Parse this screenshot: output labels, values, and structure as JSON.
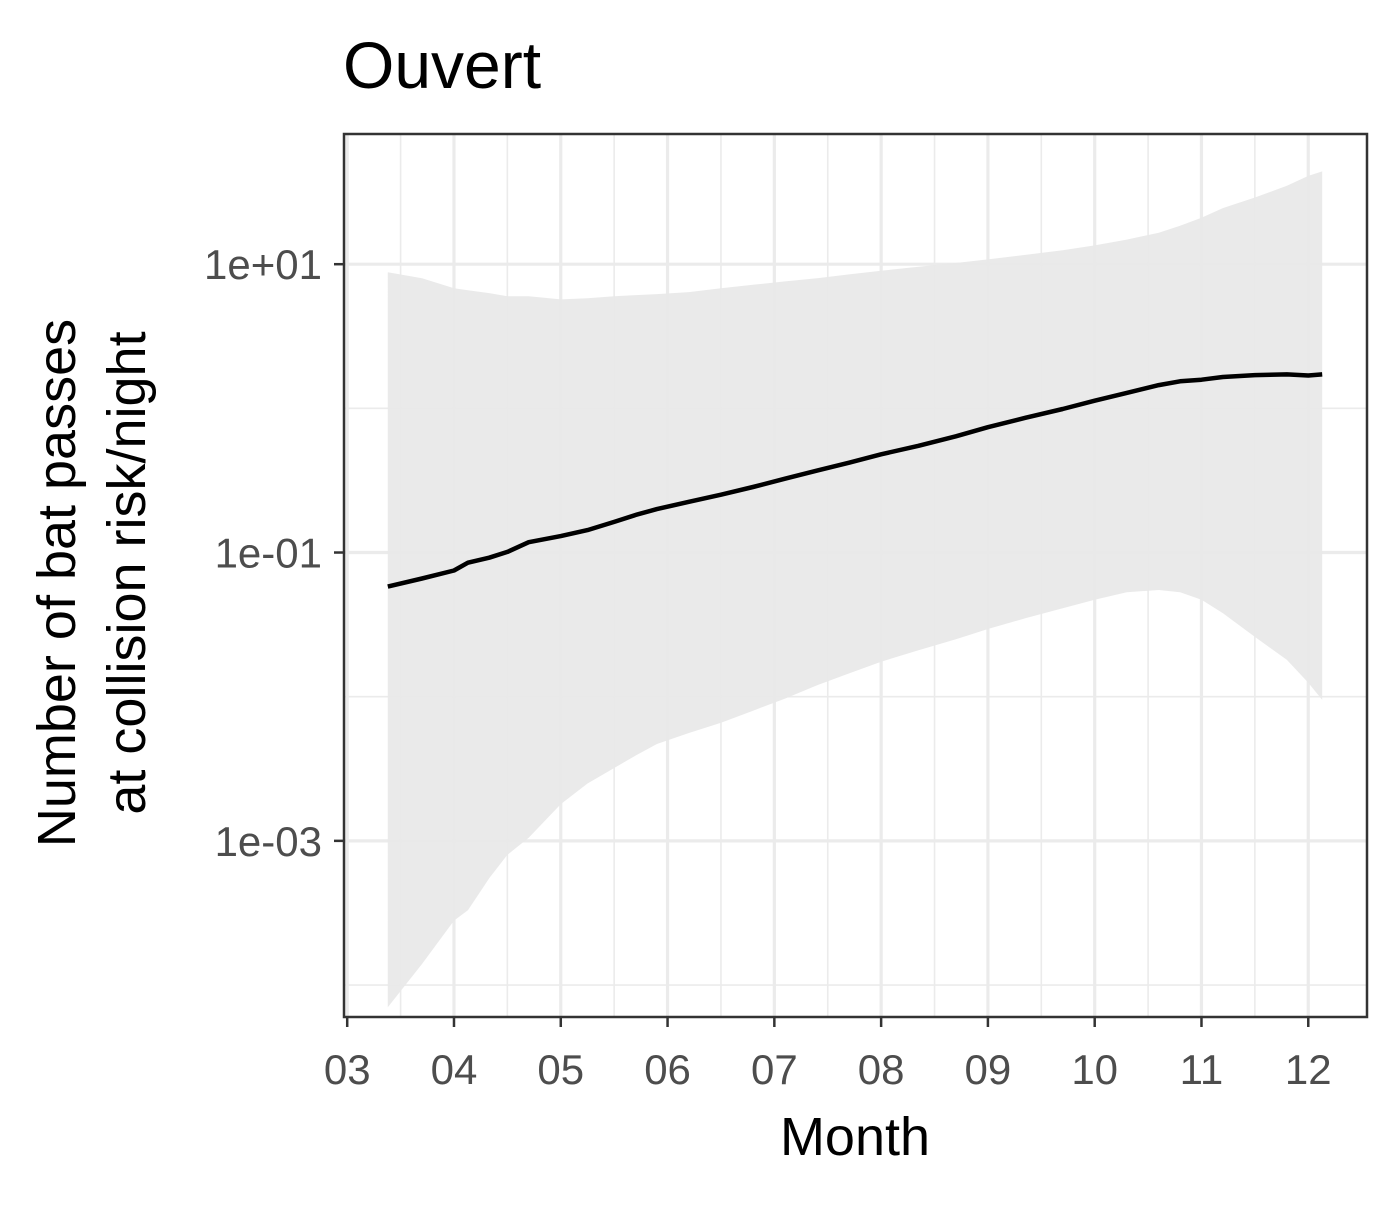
{
  "chart_data": {
    "type": "line",
    "title": "Ouvert",
    "xlabel": "Month",
    "ylabel_line1": "Number of bat passes",
    "ylabel_line2": "at collision risk/night",
    "x_ticks": [
      "03",
      "04",
      "05",
      "06",
      "07",
      "08",
      "09",
      "10",
      "11",
      "12"
    ],
    "x_tick_values": [
      3,
      4,
      5,
      6,
      7,
      8,
      9,
      10,
      11,
      12
    ],
    "xlim": [
      2.97,
      12.55
    ],
    "y_scale": "log10",
    "y_ticks": [
      "1e+01",
      "1e-01",
      "1e-03"
    ],
    "y_tick_values": [
      10,
      0.1,
      0.001
    ],
    "ylim": [
      6e-05,
      80
    ],
    "grid": true,
    "colors": {
      "line": "#000000",
      "ribbon": "#e8e8e8",
      "panel_border": "#333333",
      "grid": "#ebebeb",
      "tick_label": "#4d4d4d"
    },
    "series": [
      {
        "x": [
          3.38,
          3.7,
          4.0,
          4.13,
          4.33,
          4.5,
          4.7,
          5.0,
          5.25,
          5.5,
          5.7,
          5.9,
          6.2,
          6.5,
          6.8,
          7.1,
          7.4,
          7.7,
          8.0,
          8.35,
          8.7,
          9.0,
          9.35,
          9.7,
          10.0,
          10.3,
          10.6,
          10.8,
          11.0,
          11.2,
          11.5,
          11.8,
          12.0,
          12.13
        ],
        "y": [
          0.058,
          0.066,
          0.075,
          0.085,
          0.092,
          0.101,
          0.118,
          0.13,
          0.143,
          0.163,
          0.182,
          0.2,
          0.225,
          0.252,
          0.285,
          0.325,
          0.37,
          0.42,
          0.48,
          0.55,
          0.64,
          0.74,
          0.86,
          0.99,
          1.13,
          1.28,
          1.45,
          1.54,
          1.58,
          1.65,
          1.7,
          1.72,
          1.69,
          1.72
        ],
        "lower": [
          7e-05,
          0.00014,
          0.00028,
          0.00033,
          0.00055,
          0.0008,
          0.00105,
          0.0018,
          0.0025,
          0.0032,
          0.0039,
          0.0047,
          0.0056,
          0.0066,
          0.008,
          0.0097,
          0.012,
          0.0145,
          0.0175,
          0.021,
          0.025,
          0.0295,
          0.035,
          0.041,
          0.047,
          0.053,
          0.055,
          0.053,
          0.047,
          0.038,
          0.026,
          0.018,
          0.0125,
          0.0095
        ],
        "upper": [
          8.8,
          8.0,
          6.8,
          6.6,
          6.3,
          6.0,
          6.0,
          5.7,
          5.8,
          6.0,
          6.1,
          6.2,
          6.4,
          6.8,
          7.2,
          7.6,
          8.0,
          8.5,
          9.0,
          9.6,
          10.2,
          10.8,
          11.6,
          12.5,
          13.5,
          14.8,
          16.5,
          18.5,
          21.0,
          24.5,
          29.0,
          35.0,
          41.0,
          44.0
        ]
      }
    ]
  }
}
